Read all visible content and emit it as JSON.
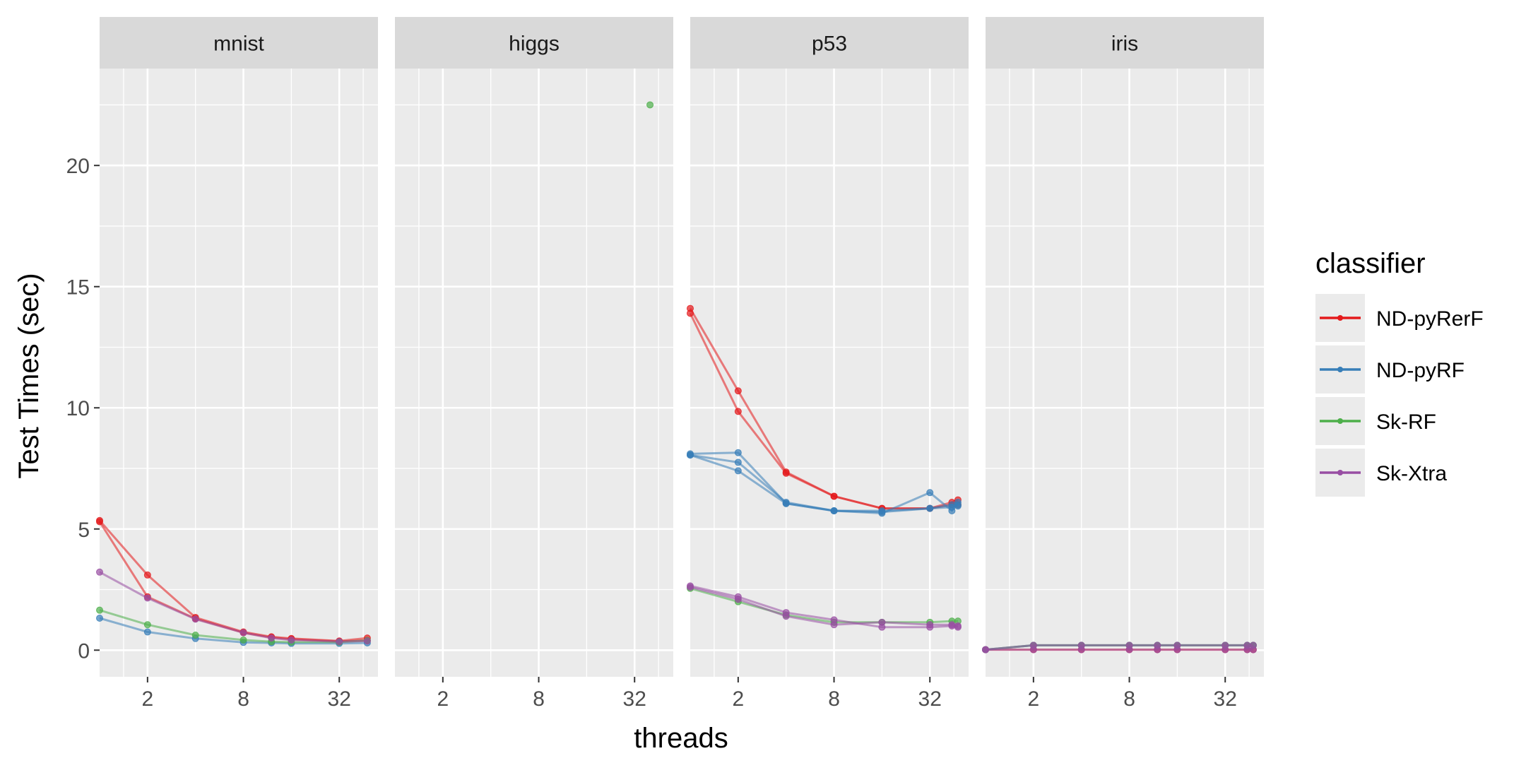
{
  "chart_data": {
    "type": "line",
    "facet_by": "dataset",
    "xlabel": "threads",
    "ylabel": "Test Times (sec)",
    "x_scale": "log2",
    "x_ticks": [
      2,
      8,
      32
    ],
    "xlim": [
      1,
      56
    ],
    "y_ticks": [
      0,
      5,
      10,
      15,
      20
    ],
    "ylim": [
      -1.1,
      24.0
    ],
    "grid": true,
    "legend": {
      "title": "classifier",
      "position": "right",
      "entries": [
        "ND-pyRerF",
        "ND-pyRF",
        "Sk-RF",
        "Sk-Xtra"
      ]
    },
    "colors": {
      "ND-pyRerF": "#E41A1C",
      "ND-pyRF": "#377EB8",
      "Sk-RF": "#4DAF4A",
      "Sk-Xtra": "#984EA3"
    },
    "panels": [
      {
        "title": "mnist",
        "series": [
          {
            "name": "ND-pyRerF",
            "runs": [
              {
                "x": [
                  1,
                  2,
                  4,
                  8,
                  12,
                  16,
                  32,
                  48
                ],
                "y": [
                  5.35,
                  3.1,
                  1.35,
                  0.75,
                  0.55,
                  0.48,
                  0.38,
                  0.5
                ]
              },
              {
                "x": [
                  1,
                  2,
                  4,
                  8,
                  12,
                  16,
                  32,
                  48
                ],
                "y": [
                  5.3,
                  2.2,
                  1.3,
                  0.72,
                  0.52,
                  0.45,
                  0.36,
                  0.4
                ]
              }
            ]
          },
          {
            "name": "ND-pyRF",
            "runs": [
              {
                "x": [
                  1,
                  2,
                  4,
                  8,
                  12,
                  16,
                  32,
                  48
                ],
                "y": [
                  1.32,
                  0.75,
                  0.48,
                  0.32,
                  0.3,
                  0.28,
                  0.28,
                  0.3
                ]
              }
            ]
          },
          {
            "name": "Sk-RF",
            "runs": [
              {
                "x": [
                  1,
                  2,
                  4,
                  8,
                  12,
                  16,
                  32,
                  48
                ],
                "y": [
                  1.65,
                  1.05,
                  0.62,
                  0.42,
                  0.35,
                  0.33,
                  0.33,
                  0.4
                ]
              }
            ]
          },
          {
            "name": "Sk-Xtra",
            "runs": [
              {
                "x": [
                  1,
                  2,
                  4,
                  8,
                  12,
                  16,
                  32,
                  48
                ],
                "y": [
                  3.22,
                  2.15,
                  1.28,
                  0.72,
                  0.5,
                  0.42,
                  0.35,
                  0.38
                ]
              }
            ]
          }
        ]
      },
      {
        "title": "higgs",
        "series": [
          {
            "name": "Sk-RF",
            "runs": [
              {
                "x": [
                  40
                ],
                "y": [
                  22.5
                ]
              }
            ]
          }
        ]
      },
      {
        "title": "p53",
        "series": [
          {
            "name": "ND-pyRerF",
            "runs": [
              {
                "x": [
                  1,
                  2,
                  4,
                  8,
                  16,
                  32,
                  44,
                  48
                ],
                "y": [
                  14.1,
                  10.7,
                  7.35,
                  6.35,
                  5.85,
                  5.85,
                  6.1,
                  6.2
                ]
              },
              {
                "x": [
                  1,
                  2,
                  4,
                  8,
                  16,
                  32,
                  44,
                  48
                ],
                "y": [
                  13.9,
                  9.85,
                  7.3,
                  6.35,
                  5.85,
                  5.85,
                  6.0,
                  6.0
                ]
              }
            ]
          },
          {
            "name": "ND-pyRF",
            "runs": [
              {
                "x": [
                  1,
                  2,
                  4,
                  8,
                  16,
                  32,
                  44,
                  48
                ],
                "y": [
                  8.1,
                  8.15,
                  6.05,
                  5.75,
                  5.65,
                  6.5,
                  5.75,
                  6.1
                ]
              },
              {
                "x": [
                  1,
                  2,
                  4,
                  8,
                  16,
                  32,
                  44,
                  48
                ],
                "y": [
                  8.05,
                  7.75,
                  6.1,
                  5.75,
                  5.7,
                  5.85,
                  5.9,
                  6.0
                ]
              },
              {
                "x": [
                  1,
                  2,
                  4,
                  8,
                  16,
                  32,
                  44,
                  48
                ],
                "y": [
                  8.05,
                  7.4,
                  6.05,
                  5.75,
                  5.75,
                  5.85,
                  6.0,
                  5.95
                ]
              }
            ]
          },
          {
            "name": "Sk-RF",
            "runs": [
              {
                "x": [
                  1,
                  2,
                  4,
                  8,
                  16,
                  32,
                  44,
                  48
                ],
                "y": [
                  2.55,
                  2.0,
                  1.45,
                  1.15,
                  1.15,
                  1.15,
                  1.2,
                  1.2
                ]
              }
            ]
          },
          {
            "name": "Sk-Xtra",
            "runs": [
              {
                "x": [
                  1,
                  2,
                  4,
                  8,
                  16,
                  32,
                  44,
                  48
                ],
                "y": [
                  2.65,
                  2.2,
                  1.55,
                  1.25,
                  0.95,
                  0.95,
                  1.0,
                  0.95
                ]
              },
              {
                "x": [
                  1,
                  2,
                  4,
                  8,
                  16,
                  32,
                  44,
                  48
                ],
                "y": [
                  2.6,
                  2.1,
                  1.4,
                  1.05,
                  1.15,
                  1.05,
                  1.05,
                  1.0
                ]
              }
            ]
          }
        ]
      },
      {
        "title": "iris",
        "series": [
          {
            "name": "ND-pyRerF",
            "runs": [
              {
                "x": [
                  1,
                  2,
                  4,
                  8,
                  12,
                  16,
                  32,
                  44,
                  48
                ],
                "y": [
                  0.02,
                  0.02,
                  0.02,
                  0.02,
                  0.02,
                  0.02,
                  0.02,
                  0.02,
                  0.02
                ]
              }
            ]
          },
          {
            "name": "ND-pyRF",
            "runs": [
              {
                "x": [
                  1,
                  2,
                  4,
                  8,
                  12,
                  16,
                  32,
                  44,
                  48
                ],
                "y": [
                  0.02,
                  0.2,
                  0.2,
                  0.2,
                  0.2,
                  0.2,
                  0.2,
                  0.2,
                  0.2
                ]
              }
            ]
          },
          {
            "name": "Sk-RF",
            "runs": [
              {
                "x": [
                  1,
                  2,
                  4,
                  8,
                  12,
                  16,
                  32,
                  44,
                  48
                ],
                "y": [
                  0.02,
                  0.2,
                  0.2,
                  0.2,
                  0.2,
                  0.2,
                  0.2,
                  0.2,
                  0.2
                ]
              }
            ]
          },
          {
            "name": "Sk-Xtra",
            "runs": [
              {
                "x": [
                  1,
                  2,
                  4,
                  8,
                  12,
                  16,
                  32,
                  44,
                  48
                ],
                "y": [
                  0.02,
                  0.02,
                  0.02,
                  0.02,
                  0.02,
                  0.02,
                  0.02,
                  0.02,
                  0.02
                ]
              },
              {
                "x": [
                  1,
                  2,
                  4,
                  8,
                  12,
                  16,
                  32,
                  44,
                  48
                ],
                "y": [
                  0.02,
                  0.2,
                  0.2,
                  0.2,
                  0.2,
                  0.2,
                  0.2,
                  0.2,
                  0.2
                ]
              }
            ]
          }
        ]
      }
    ]
  }
}
